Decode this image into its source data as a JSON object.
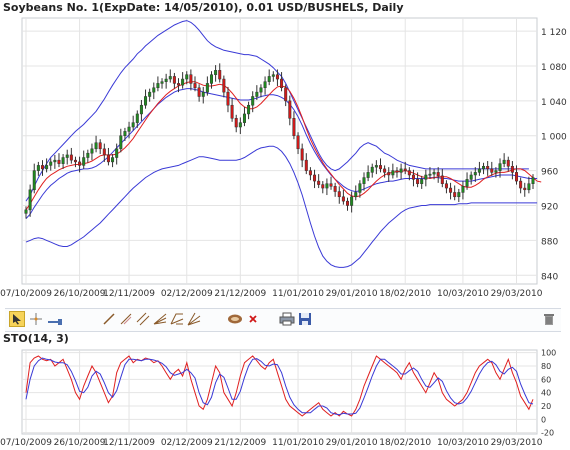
{
  "header": {
    "title": "Soybeans  No. 1(ExpDate: 14/05/2010), 0.01 USD/BUSHELS, Daily"
  },
  "toolbar": {
    "icons": [
      "pointer-icon",
      "crosshair-icon",
      "measure-icon",
      "line-icon",
      "ray-icon",
      "channel-icon",
      "fibonacci-fan-icon",
      "andrews-pitchfork-icon",
      "gann-fan-icon",
      "speed-lines-icon",
      "annotation-icon",
      "delete-object-icon",
      "print-icon",
      "save-icon",
      "trash-icon"
    ]
  },
  "colors": {
    "candle_up": "#1f8a1f",
    "candle_down": "#d11a1a",
    "bollinger_bands": "#3a3ad6",
    "moving_average": "#e02020",
    "stoch_k": "#e02020",
    "stoch_d": "#3a3ad6",
    "grid": "#e4e4e4",
    "axis_text": "#333333"
  },
  "chart_data": [
    {
      "type": "candlestick",
      "title": "Soybeans  No. 1(ExpDate: 14/05/2010), 0.01 USD/BUSHELS, Daily",
      "x_tick_labels": [
        "07/10/2009",
        "26/10/2009",
        "12/11/2009",
        "02/12/2009",
        "21/12/2009",
        "11/01/2010",
        "29/01/2010",
        "18/02/2010",
        "10/03/2010",
        "29/03/2010"
      ],
      "x_tick_index": [
        0,
        13,
        25,
        39,
        52,
        66,
        79,
        92,
        106,
        119
      ],
      "y_tick_labels": [
        "840",
        "880",
        "920",
        "960",
        "1 000",
        "1 040",
        "1 080",
        "1 120"
      ],
      "y_ticks": [
        840,
        880,
        920,
        960,
        1000,
        1040,
        1080,
        1120
      ],
      "ylim": [
        830,
        1135
      ],
      "grid": true,
      "close": [
        915,
        938,
        960,
        966,
        962,
        966,
        970,
        972,
        968,
        975,
        978,
        972,
        970,
        966,
        975,
        980,
        985,
        992,
        985,
        978,
        970,
        975,
        985,
        1000,
        1005,
        1010,
        1015,
        1025,
        1035,
        1045,
        1050,
        1055,
        1060,
        1062,
        1065,
        1068,
        1060,
        1058,
        1065,
        1070,
        1060,
        1055,
        1045,
        1050,
        1060,
        1070,
        1075,
        1065,
        1050,
        1035,
        1020,
        1010,
        1015,
        1025,
        1035,
        1045,
        1050,
        1055,
        1062,
        1068,
        1070,
        1065,
        1055,
        1040,
        1020,
        1000,
        985,
        972,
        960,
        955,
        948,
        944,
        940,
        945,
        942,
        936,
        930,
        925,
        920,
        930,
        935,
        945,
        952,
        958,
        964,
        966,
        962,
        958,
        955,
        960,
        958,
        962,
        960,
        955,
        950,
        945,
        950,
        955,
        956,
        958,
        954,
        945,
        940,
        935,
        930,
        935,
        942,
        950,
        955,
        958,
        962,
        965,
        962,
        958,
        960,
        968,
        972,
        965,
        958,
        948,
        940,
        938,
        945,
        952
      ],
      "series": [
        {
          "name": "Upper band",
          "values": [
            925,
            932,
            942,
            952,
            960,
            968,
            975,
            980,
            985,
            990,
            995,
            1000,
            1005,
            1009,
            1013,
            1018,
            1023,
            1028,
            1035,
            1042,
            1050,
            1058,
            1065,
            1072,
            1078,
            1083,
            1088,
            1094,
            1098,
            1103,
            1107,
            1111,
            1115,
            1118,
            1121,
            1124,
            1127,
            1129,
            1131,
            1132,
            1130,
            1126,
            1121,
            1115,
            1109,
            1105,
            1102,
            1100,
            1098,
            1097,
            1096,
            1095,
            1094,
            1093,
            1093,
            1092,
            1091,
            1088,
            1085,
            1082,
            1078,
            1073,
            1068,
            1060,
            1050,
            1040,
            1030,
            1020,
            1010,
            1000,
            990,
            980,
            972,
            966,
            962,
            960,
            962,
            966,
            970,
            975,
            980,
            986,
            990,
            992,
            990,
            988,
            984,
            980,
            978,
            975,
            972,
            970,
            968,
            966,
            965,
            964,
            963,
            962,
            962,
            962,
            962,
            962,
            962,
            962,
            962,
            962,
            962,
            962,
            962,
            962,
            962,
            962,
            962,
            962,
            962,
            962,
            962,
            962,
            962,
            962,
            962,
            962,
            962
          ],
          "style": "thin-blue"
        },
        {
          "name": "Middle band",
          "values": [
            905,
            910,
            918,
            925,
            932,
            938,
            943,
            947,
            951,
            954,
            957,
            959,
            960,
            961,
            962,
            962,
            963,
            965,
            968,
            972,
            976,
            981,
            986,
            991,
            996,
            1001,
            1006,
            1011,
            1016,
            1021,
            1026,
            1031,
            1036,
            1040,
            1044,
            1047,
            1050,
            1052,
            1053,
            1054,
            1054,
            1053,
            1052,
            1050,
            1049,
            1048,
            1047,
            1046,
            1045,
            1044,
            1043,
            1042,
            1041,
            1041,
            1041,
            1042,
            1043,
            1045,
            1046,
            1047,
            1047,
            1046,
            1044,
            1041,
            1036,
            1030,
            1022,
            1012,
            1001,
            991,
            982,
            974,
            967,
            961,
            955,
            950,
            946,
            942,
            939,
            937,
            936,
            937,
            939,
            941,
            943,
            945,
            946,
            947,
            948,
            948,
            949,
            950,
            951,
            951,
            951,
            951,
            951,
            951,
            952,
            952,
            952,
            951,
            951,
            950,
            949,
            948,
            948,
            948,
            948,
            949,
            950,
            951,
            952,
            953,
            954,
            955,
            955,
            955,
            955,
            954,
            953,
            952,
            951,
            951,
            951
          ],
          "style": "thin-blue"
        },
        {
          "name": "Lower band",
          "values": [
            878,
            880,
            882,
            883,
            882,
            880,
            878,
            876,
            874,
            873,
            873,
            875,
            878,
            881,
            884,
            888,
            892,
            896,
            900,
            905,
            910,
            915,
            920,
            925,
            930,
            935,
            940,
            944,
            948,
            952,
            955,
            958,
            960,
            962,
            963,
            964,
            965,
            966,
            968,
            970,
            972,
            974,
            976,
            976,
            975,
            974,
            973,
            972,
            972,
            972,
            972,
            972,
            973,
            975,
            978,
            981,
            984,
            986,
            987,
            988,
            988,
            986,
            982,
            976,
            968,
            958,
            946,
            932,
            916,
            900,
            885,
            872,
            862,
            856,
            852,
            850,
            849,
            849,
            850,
            852,
            856,
            860,
            866,
            872,
            878,
            884,
            890,
            895,
            900,
            904,
            908,
            912,
            915,
            917,
            918,
            919,
            920,
            920,
            921,
            921,
            921,
            921,
            921,
            921,
            921,
            922,
            922,
            922,
            923,
            923,
            923,
            923,
            923,
            923,
            923,
            923,
            923,
            923,
            923,
            923,
            923,
            923,
            923,
            923,
            923
          ],
          "style": "thin-blue"
        },
        {
          "name": "Moving average",
          "values": [
            915,
            922,
            930,
            938,
            945,
            951,
            955,
            958,
            961,
            963,
            965,
            966,
            967,
            967,
            968,
            969,
            971,
            974,
            977,
            978,
            978,
            978,
            979,
            982,
            986,
            991,
            997,
            1004,
            1011,
            1018,
            1025,
            1031,
            1037,
            1042,
            1047,
            1051,
            1054,
            1057,
            1059,
            1061,
            1062,
            1062,
            1060,
            1058,
            1057,
            1057,
            1058,
            1059,
            1058,
            1054,
            1049,
            1043,
            1037,
            1033,
            1031,
            1031,
            1033,
            1037,
            1042,
            1047,
            1052,
            1056,
            1057,
            1056,
            1051,
            1043,
            1033,
            1021,
            1008,
            996,
            986,
            977,
            969,
            962,
            956,
            950,
            944,
            939,
            934,
            931,
            930,
            931,
            934,
            938,
            943,
            948,
            952,
            955,
            957,
            958,
            959,
            959,
            960,
            959,
            957,
            955,
            953,
            952,
            951,
            952,
            953,
            953,
            953,
            951,
            948,
            945,
            942,
            941,
            941,
            943,
            946,
            950,
            953,
            955,
            957,
            958,
            958,
            959,
            961,
            962,
            962,
            960,
            956,
            952,
            948,
            947
          ],
          "style": "thin-red"
        }
      ]
    },
    {
      "type": "line",
      "title": "STO(14, 3)",
      "x_tick_labels": [
        "07/10/2009",
        "26/10/2009",
        "12/11/2009",
        "02/12/2009",
        "21/12/2009",
        "11/01/2010",
        "29/01/2010",
        "18/02/2010",
        "10/03/2010",
        "29/03/2010"
      ],
      "x_tick_index": [
        0,
        13,
        25,
        39,
        52,
        66,
        79,
        92,
        106,
        119
      ],
      "y_tick_labels": [
        "100",
        "80",
        "60",
        "40",
        "20",
        "0",
        "-20"
      ],
      "y_ticks": [
        100,
        80,
        60,
        40,
        20,
        0,
        -20
      ],
      "ylim": [
        -22,
        104
      ],
      "grid": true,
      "series": [
        {
          "name": "%K",
          "values": [
            40,
            85,
            92,
            95,
            90,
            88,
            90,
            80,
            85,
            90,
            75,
            60,
            40,
            30,
            50,
            65,
            80,
            70,
            55,
            40,
            25,
            35,
            70,
            85,
            90,
            95,
            85,
            90,
            88,
            92,
            90,
            85,
            88,
            80,
            70,
            60,
            70,
            75,
            65,
            85,
            60,
            40,
            20,
            15,
            30,
            55,
            80,
            70,
            40,
            30,
            20,
            40,
            65,
            85,
            90,
            95,
            88,
            80,
            75,
            85,
            90,
            70,
            50,
            30,
            20,
            15,
            10,
            5,
            10,
            15,
            20,
            25,
            15,
            10,
            5,
            10,
            5,
            12,
            8,
            5,
            15,
            30,
            50,
            65,
            80,
            95,
            90,
            85,
            80,
            75,
            70,
            60,
            75,
            85,
            70,
            60,
            50,
            40,
            55,
            70,
            60,
            40,
            30,
            25,
            20,
            25,
            30,
            40,
            55,
            70,
            80,
            85,
            90,
            85,
            70,
            60,
            75,
            90,
            70,
            55,
            35,
            25,
            15,
            30
          ],
          "style": "thin-red"
        },
        {
          "name": "%D",
          "values": [
            30,
            60,
            80,
            88,
            92,
            90,
            89,
            86,
            85,
            85,
            82,
            72,
            58,
            42,
            40,
            48,
            65,
            72,
            68,
            55,
            40,
            33,
            43,
            63,
            82,
            90,
            90,
            89,
            88,
            90,
            90,
            89,
            87,
            84,
            79,
            70,
            66,
            68,
            70,
            75,
            70,
            62,
            40,
            25,
            22,
            33,
            55,
            68,
            63,
            47,
            30,
            30,
            42,
            63,
            80,
            90,
            91,
            87,
            81,
            80,
            83,
            82,
            70,
            50,
            33,
            22,
            15,
            10,
            10,
            10,
            15,
            20,
            20,
            17,
            10,
            8,
            7,
            9,
            8,
            8,
            9,
            17,
            32,
            48,
            65,
            80,
            90,
            90,
            85,
            80,
            75,
            68,
            68,
            73,
            77,
            72,
            60,
            50,
            48,
            55,
            62,
            57,
            43,
            32,
            25,
            23,
            25,
            32,
            42,
            55,
            68,
            78,
            85,
            87,
            82,
            72,
            68,
            75,
            78,
            72,
            53,
            38,
            25,
            23
          ],
          "style": "thin-blue"
        }
      ]
    }
  ]
}
